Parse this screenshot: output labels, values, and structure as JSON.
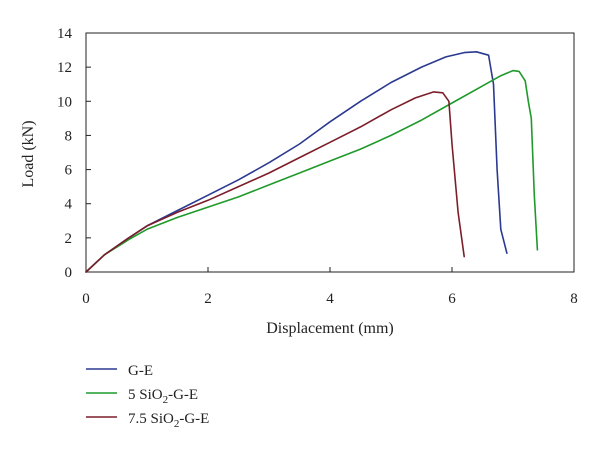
{
  "chart_data": {
    "type": "line",
    "xlabel": "Displacement (mm)",
    "ylabel": "Load (kN)",
    "xlim": [
      0,
      8
    ],
    "ylim": [
      0,
      14
    ],
    "xticks": [
      0,
      2,
      4,
      6,
      8
    ],
    "yticks": [
      0,
      2,
      4,
      6,
      8,
      10,
      12,
      14
    ],
    "grid": false,
    "legend_position": "bottom-left",
    "series": [
      {
        "name": "G-E",
        "legend": {
          "prefix": "G-E",
          "sub": "",
          "suffix": ""
        },
        "color": "#2b3990",
        "x": [
          0,
          0.3,
          0.7,
          1.0,
          1.5,
          2.0,
          2.5,
          3.0,
          3.5,
          4.0,
          4.5,
          5.0,
          5.5,
          5.9,
          6.2,
          6.4,
          6.6,
          6.68,
          6.74,
          6.8,
          6.9
        ],
        "y": [
          0,
          1.0,
          2.0,
          2.7,
          3.6,
          4.5,
          5.4,
          6.4,
          7.5,
          8.8,
          10.0,
          11.1,
          12.0,
          12.6,
          12.85,
          12.9,
          12.7,
          11.0,
          6.0,
          2.5,
          1.1
        ]
      },
      {
        "name": "5 SiO2-G-E",
        "legend": {
          "prefix": "5 SiO",
          "sub": "2",
          "suffix": "-G-E"
        },
        "color": "#1f9a2a",
        "x": [
          0,
          0.3,
          0.7,
          1.0,
          1.5,
          2.0,
          2.5,
          3.0,
          3.5,
          4.0,
          4.5,
          5.0,
          5.5,
          6.0,
          6.5,
          6.8,
          7.0,
          7.1,
          7.2,
          7.25,
          7.3,
          7.35,
          7.4
        ],
        "y": [
          0,
          1.0,
          1.9,
          2.5,
          3.2,
          3.8,
          4.4,
          5.1,
          5.8,
          6.5,
          7.2,
          8.0,
          8.9,
          9.9,
          10.9,
          11.5,
          11.8,
          11.75,
          11.2,
          10.0,
          9.0,
          4.5,
          1.3
        ]
      },
      {
        "name": "7.5 SiO2-G-E",
        "legend": {
          "prefix": "7.5 SiO",
          "sub": "2",
          "suffix": "-G-E"
        },
        "color": "#7b1e2a",
        "x": [
          0,
          0.3,
          0.7,
          1.0,
          1.5,
          2.0,
          2.5,
          3.0,
          3.5,
          4.0,
          4.5,
          5.0,
          5.4,
          5.7,
          5.85,
          5.95,
          6.0,
          6.1,
          6.2
        ],
        "y": [
          0,
          1.0,
          2.0,
          2.7,
          3.5,
          4.2,
          5.0,
          5.8,
          6.7,
          7.6,
          8.5,
          9.5,
          10.2,
          10.55,
          10.5,
          10.0,
          7.5,
          3.5,
          0.9
        ]
      }
    ]
  }
}
